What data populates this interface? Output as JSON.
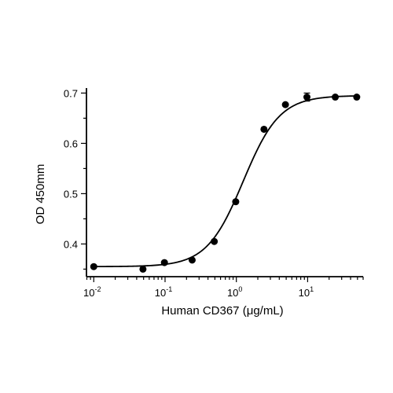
{
  "chart_data": {
    "type": "scatter",
    "title": "",
    "xlabel": "Human CD367 (μg/mL)",
    "ylabel": "OD 450mm",
    "x_scale": "log",
    "xlim": [
      0.0079,
      60
    ],
    "ylim": [
      0.335,
      0.71
    ],
    "x_ticks": [
      {
        "value": 0.01,
        "base": "10",
        "exp": "-2"
      },
      {
        "value": 0.1,
        "base": "10",
        "exp": "-1"
      },
      {
        "value": 1,
        "base": "10",
        "exp": "0"
      },
      {
        "value": 10,
        "base": "10",
        "exp": "1"
      }
    ],
    "y_ticks": [
      {
        "value": 0.4,
        "label": "0.4"
      },
      {
        "value": 0.5,
        "label": "0.5"
      },
      {
        "value": 0.6,
        "label": "0.6"
      },
      {
        "value": 0.7,
        "label": "0.7"
      }
    ],
    "grid": false,
    "legend": "none",
    "colors": {
      "series": "#000000"
    },
    "series": [
      {
        "x": [
          0.01,
          0.049,
          0.098,
          0.24,
          0.49,
          0.98,
          2.44,
          4.88,
          9.77,
          24.4,
          48.8
        ],
        "y": [
          0.355,
          0.35,
          0.363,
          0.368,
          0.405,
          0.484,
          0.628,
          0.677,
          0.692,
          0.692,
          0.692
        ],
        "error": [
          0,
          0,
          0,
          0,
          0,
          0,
          0,
          0,
          0.008,
          0,
          0
        ]
      }
    ],
    "fit": {
      "model": "4PL",
      "bottom": 0.355,
      "top": 0.695,
      "ec50": 1.25,
      "hill": 1.7
    }
  }
}
